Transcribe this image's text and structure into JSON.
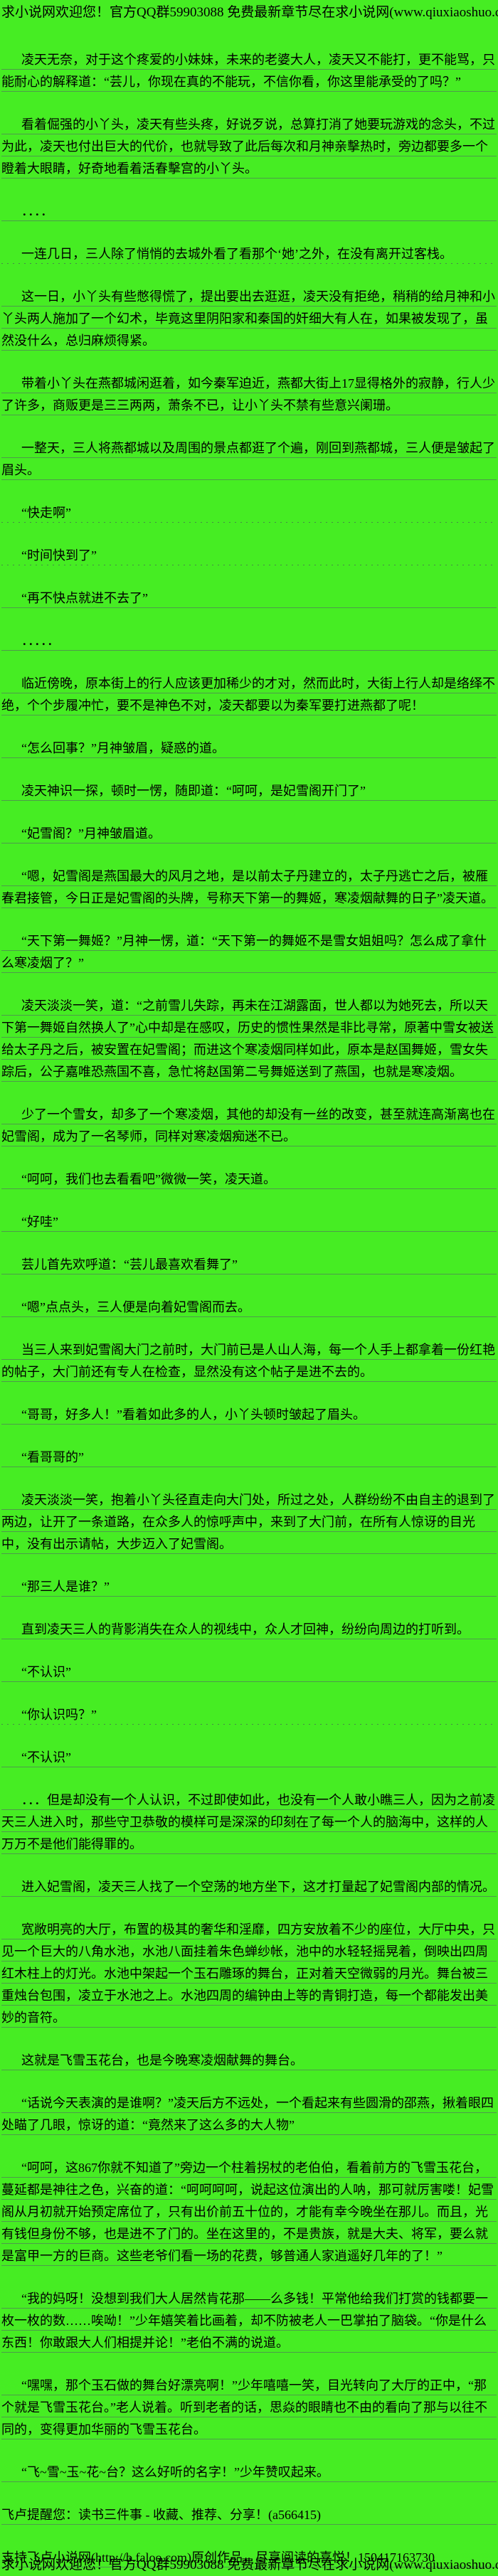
{
  "page": {
    "bg_color": "#46ed23",
    "header_banner": "求小说网欢迎您！官方QQ群59903088 免费最新章节尽在求小说网(www.qiuxiaoshuo.com)",
    "footer_banner": "求小说网欢迎您！官方QQ群59903088 免费最新章节尽在求小说网(www.qiuxiaoshuo.com)"
  },
  "content": {
    "paragraphs": [
      {
        "text": "凌天无奈，对于这个疼爱的小妹妹，未来的老婆大人，凌天又不能打，更不能骂，只能耐心的解释道：“芸儿，你现在真的不能玩，不信你看，你这里能承受的了吗？”",
        "indent": true,
        "underline": "solid"
      },
      {
        "text": "看着倔强的小丫头，凌天有些头疼，好说歹说，总算打消了她要玩游戏的念头，不过为此，凌天也付出巨大的代价，也就导致了此后每次和月神亲擊热时，旁边都要多一个瞪着大眼睛，好奇地看着活春擊宫的小丫头。",
        "indent": true,
        "underline": "solid"
      },
      {
        "text": "．．．．",
        "indent": true,
        "underline": "solid"
      },
      {
        "text": "一连几日，三人除了悄悄的去城外看了看那个‘她’之外，在没有离开过客栈。",
        "indent": true,
        "underline": "dotted"
      },
      {
        "text": "这一日，小丫头有些憋得慌了，提出要出去逛逛，凌天没有拒绝，稍稍的给月神和小丫头两人施加了一个幻术，毕竟这里阴阳家和秦国的奸细大有人在，如果被发现了，虽然没什么，总归麻烦得紧。",
        "indent": true,
        "underline": "solid"
      },
      {
        "text": "带着小丫头在燕都城闲逛着，如今秦军迫近，燕都大街上17显得格外的寂静，行人少了许多，商贩更是三三两两，萧条不已，让小丫头不禁有些意兴阑珊。",
        "indent": true,
        "underline": "solid"
      },
      {
        "text": "一整天，三人将燕都城以及周围的景点都逛了个遍，刚回到燕都城，三人便是皱起了眉头。",
        "indent": true,
        "underline": "solid"
      },
      {
        "text": "“快走啊”",
        "indent": true,
        "underline": "dotted"
      },
      {
        "text": "“时间快到了”",
        "indent": true,
        "underline": "dotted"
      },
      {
        "text": "“再不快点就进不去了”",
        "indent": true,
        "underline": "solid"
      },
      {
        "text": "．．．．．",
        "indent": true,
        "underline": "solid"
      },
      {
        "text": "临近傍晚，原本街上的行人应该更加稀少的才对，然而此时，大街上行人却是络绎不绝，个个步履冲忙，要不是神色不对，凌天都要以为秦军要打进燕都了呢！",
        "indent": true,
        "underline": "solid"
      },
      {
        "text": "“怎么回事？”月神皱眉，疑惑的道。",
        "indent": true,
        "underline": "solid"
      },
      {
        "text": "凌天神识一探，顿时一愣，随即道：“呵呵，是妃雪阁开门了”",
        "indent": true,
        "underline": "solid"
      },
      {
        "text": "“妃雪阁？”月神皱眉道。",
        "indent": true,
        "underline": "solid"
      },
      {
        "text": "“嗯，妃雪阁是燕国最大的风月之地，是以前太子丹建立的，太子丹逃亡之后，被雁春君接管，今日正是妃雪阁的头牌，号称天下第一的舞姬，寒凌烟献舞的日子”凌天道。",
        "indent": true,
        "underline": "solid"
      },
      {
        "text": "“天下第一舞姬？”月神一愣，道：“天下第一的舞姬不是雪女姐姐吗？怎么成了拿什么寒凌烟了？”",
        "indent": true,
        "underline": "solid"
      },
      {
        "text": "凌天淡淡一笑，道：“之前雪儿失踪，再未在江湖露面，世人都以为她死去，所以天下第一舞姬自然换人了”心中却是在感叹，历史的惯性果然是非比寻常，原著中雪女被送给太子丹之后，被安置在妃雪阁；而进这个寒凌烟同样如此，原本是赵国舞姬，雪女失踪后，公子嘉唯恐燕国不喜，急忙将赵国第二号舞姬送到了燕国，也就是寒凌烟。",
        "indent": true,
        "underline": "solid"
      },
      {
        "text": "少了一个雪女，却多了一个寒凌烟，其他的却没有一丝的改变，甚至就连高渐离也在妃雪阁，成为了一名琴师，同样对寒凌烟痴迷不已。",
        "indent": true,
        "underline": "solid"
      },
      {
        "text": "“呵呵，我们也去看看吧”微微一笑，凌天道。",
        "indent": true,
        "underline": "solid"
      },
      {
        "text": "“好哇”",
        "indent": true,
        "underline": "solid"
      },
      {
        "text": "芸儿首先欢呼道：“芸儿最喜欢看舞了”",
        "indent": true,
        "underline": "solid"
      },
      {
        "text": "“嗯”点点头，三人便是向着妃雪阁而去。",
        "indent": true,
        "underline": "solid"
      },
      {
        "text": "当三人来到妃雪阁大门之前时，大门前已是人山人海，每一个人手上都拿着一份红艳的帖子，大门前还有专人在检查，显然没有这个帖子是进不去的。",
        "indent": true,
        "underline": "solid"
      },
      {
        "text": "“哥哥，好多人！”看着如此多的人，小丫头顿时皱起了眉头。",
        "indent": true,
        "underline": "solid"
      },
      {
        "text": "“看哥哥的”",
        "indent": true,
        "underline": "solid"
      },
      {
        "text": "凌天淡淡一笑，抱着小丫头径直走向大门处，所过之处，人群纷纷不由自主的退到了两边，让开了一条道路，在众多人的惊呼声中，来到了大门前，在所有人惊讶的目光中，没有出示请帖，大步迈入了妃雪阁。",
        "indent": true,
        "underline": "solid"
      },
      {
        "text": "“那三人是谁？”",
        "indent": true,
        "underline": "solid"
      },
      {
        "text": "直到凌天三人的背影消失在众人的视线中，众人才回神，纷纷向周边的打听到。",
        "indent": true,
        "underline": "solid"
      },
      {
        "text": "“不认识”",
        "indent": true,
        "underline": "solid"
      },
      {
        "text": "“你认识吗？”",
        "indent": true,
        "underline": "dotted"
      },
      {
        "text": "“不认识”",
        "indent": true,
        "underline": "solid"
      },
      {
        "text": "．．．但是却没有一个人认识，不过即使如此，也没有一个人敢小瞧三人，因为之前凌天三人进入时，那些守卫恭敬的模样可是深深的印刻在了每一个人的脑海中，这样的人万万不是他们能得罪的。",
        "indent": true,
        "underline": "solid"
      },
      {
        "text": "进入妃雪阁，凌天三人找了一个空荡的地方坐下，这才打量起了妃雪阁内部的情况。",
        "indent": true,
        "underline": "solid"
      },
      {
        "text": "宽敞明亮的大厅，布置的极其的奢华和淫靡，四方安放着不少的座位，大厅中央，只见一个巨大的八角水池，水池八面挂着朱色蝉纱帐，池中的水轻轻摇晃着，倒映出四周红木柱上的灯光。水池中架起一个玉石雕琢的舞台，正对着天空微弱的月光。舞台被三重烛台包围，凌立于水池之上。水池四周的编钟由上等的青铜打造，每一个都能发出美妙的音符。",
        "indent": true,
        "underline": "solid"
      },
      {
        "text": "这就是飞雪玉花台，也是今晚寒凌烟献舞的舞台。",
        "indent": true,
        "underline": "solid"
      },
      {
        "text": "“话说今天表演的是谁啊？”凌天后方不远处，一个看起来有些圆滑的邵燕，揪着眼四处瞄了几眼，惊讶的道：“竟然来了这么多的大人物”",
        "indent": true,
        "underline": "solid"
      },
      {
        "text": "“呵呵，这867你就不知道了”旁边一个柱着拐杖的老伯伯，看着前方的飞雪玉花台，蔓延都是神往之色，兴奋的道：“呵呵呵呵，说起这位演出的人呐，那可就厉害喽！妃雪阁从月初就开始预定席位了，只有出价前五十位的，才能有幸今晚坐在那儿。而且，光有钱但身份不够，也是进不了门的。坐在这里的，不是贵族，就是大夫、将军，要么就是富甲一方的巨商。这些老爷们看一场的花费，够普通人家逍遥好几年的了！”",
        "indent": true,
        "underline": "solid"
      },
      {
        "text": "“我的妈呀！没想到我们大人居然肯花那――么多钱！平常他给我们打赏的钱都要一枚一枚的数……唉呦！”少年嬉笑着比画着，却不防被老人一巴掌拍了脑袋。“你是什么东西！你敢跟大人们相提并论！”老伯不满的说道。",
        "indent": true,
        "underline": "solid"
      },
      {
        "text": "“嘿嘿，那个玉石做的舞台好漂亮啊！”少年嘻嘻一笑，目光转向了大厅的正中，“那个就是飞雪玉花台。”老人说着。听到老者的话，思焱的眼睛也不由的看向了那与以往不同的，变得更加华丽的飞雪玉花台。",
        "indent": true,
        "underline": "solid"
      },
      {
        "text": "“飞~雪~玉~花~台？这么好听的名字！”少年赞叹起来。",
        "indent": true,
        "underline": "solid"
      },
      {
        "text": "飞卢提醒您：读书三件事 - 收藏、推荐、分享！(a566415)",
        "indent": false,
        "underline": "solid"
      },
      {
        "text": "支持飞卢小说网(http://b.faloo.com)原创作品，尽享阅读的喜悦！150417163730",
        "indent": false,
        "underline": "solid"
      }
    ]
  }
}
